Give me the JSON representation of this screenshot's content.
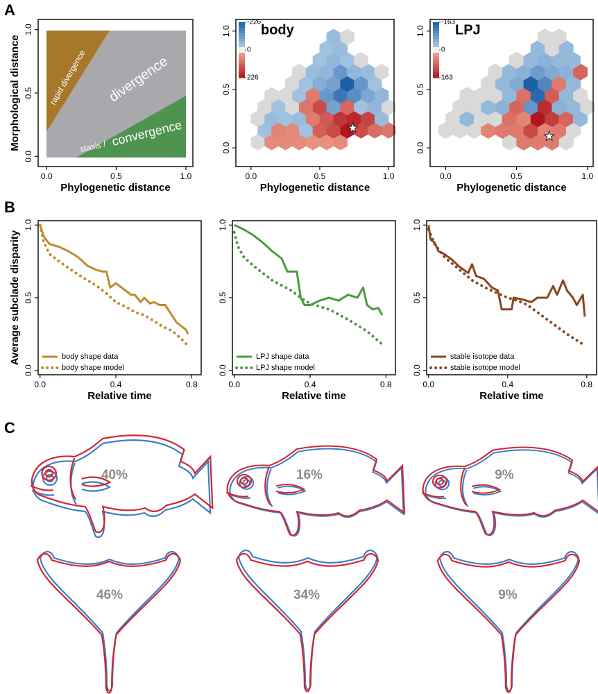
{
  "panel_labels": [
    "A",
    "B",
    "C"
  ],
  "chart_data": [
    {
      "type": "regions",
      "x_label": "Phylogenetic distance",
      "y_label": "Morphological distance",
      "xlim": [
        -0.06,
        1.05
      ],
      "ylim": [
        -0.08,
        1.08
      ],
      "xticks": [
        {
          "value": 0,
          "label": "0.0"
        },
        0.5,
        {
          "value": 1,
          "label": "1.0"
        }
      ],
      "yticks": [
        {
          "value": 0,
          "label": "0.0"
        },
        0.5,
        {
          "value": 1,
          "label": "1.0"
        }
      ],
      "annotations": [
        "rapid divergence",
        "divergence",
        "stasis /",
        "convergence"
      ]
    },
    {
      "type": "hexbin",
      "title": "body",
      "x_label": "Phylogenetic distance",
      "xlim": [
        -0.11,
        1.04
      ],
      "ylim": [
        -0.16,
        1.1
      ],
      "xticks": [
        {
          "value": 0,
          "label": "0.0"
        },
        0.5,
        {
          "value": 1,
          "label": "1.0"
        }
      ],
      "yticks": [
        {
          "value": 0,
          "label": "0.0"
        },
        0.5,
        {
          "value": 1,
          "label": "1.0"
        }
      ],
      "clim": [
        -226,
        226
      ],
      "cticks": [
        -226,
        0,
        226
      ],
      "cells": {
        "x": [
          0.05,
          0.15,
          0.25,
          0.35,
          0.45,
          0.55,
          0.65,
          0.1,
          0.2,
          0.3,
          0.4,
          0.5,
          0.6,
          0.7,
          0.8,
          0.9,
          1.0,
          0.05,
          0.15,
          0.25,
          0.35,
          0.45,
          0.55,
          0.65,
          0.75,
          0.85,
          0.95,
          0.1,
          0.2,
          0.3,
          0.4,
          0.5,
          0.6,
          0.7,
          0.8,
          0.9,
          1.0,
          0.15,
          0.25,
          0.35,
          0.45,
          0.55,
          0.65,
          0.75,
          0.85,
          0.95,
          0.3,
          0.4,
          0.5,
          0.6,
          0.7,
          0.8,
          0.9,
          0.35,
          0.45,
          0.55,
          0.65,
          0.75,
          0.85,
          0.95,
          0.5,
          0.6,
          0.7,
          0.8,
          0.55,
          0.65,
          0.6,
          0.7
        ],
        "y": [
          0.05,
          0.05,
          0.05,
          0.05,
          0.05,
          0.05,
          0.05,
          0.15,
          0.15,
          0.15,
          0.15,
          0.15,
          0.15,
          0.15,
          0.15,
          0.15,
          0.15,
          0.25,
          0.25,
          0.25,
          0.25,
          0.25,
          0.25,
          0.25,
          0.25,
          0.25,
          0.25,
          0.35,
          0.35,
          0.35,
          0.35,
          0.35,
          0.35,
          0.35,
          0.35,
          0.35,
          0.35,
          0.45,
          0.45,
          0.45,
          0.45,
          0.45,
          0.45,
          0.45,
          0.45,
          0.45,
          0.55,
          0.55,
          0.55,
          0.55,
          0.55,
          0.55,
          0.55,
          0.65,
          0.65,
          0.65,
          0.65,
          0.65,
          0.65,
          0.65,
          0.75,
          0.75,
          0.75,
          0.75,
          0.85,
          0.85,
          0.95,
          0.95
        ],
        "values": [
          0,
          60,
          60,
          60,
          50,
          50,
          60,
          -40,
          70,
          60,
          -40,
          120,
          150,
          226,
          150,
          100,
          90,
          0,
          -50,
          -40,
          -50,
          80,
          130,
          180,
          200,
          160,
          -50,
          0,
          -40,
          0,
          90,
          150,
          -100,
          110,
          -40,
          -60,
          0,
          0,
          0,
          -40,
          80,
          -120,
          -180,
          -140,
          -90,
          -60,
          0,
          -40,
          -80,
          -100,
          -226,
          -120,
          -40,
          0,
          -50,
          -60,
          -120,
          -60,
          -50,
          0,
          -40,
          -60,
          -40,
          0,
          -40,
          -50,
          -50,
          0
        ]
      },
      "star": {
        "x": 0.74,
        "y": 0.17
      }
    },
    {
      "type": "hexbin",
      "title": "LPJ",
      "x_label": "Phylogenetic distance",
      "xlim": [
        -0.11,
        1.04
      ],
      "ylim": [
        -0.16,
        1.1
      ],
      "xticks": [
        {
          "value": 0,
          "label": "0.0"
        },
        0.5,
        {
          "value": 1,
          "label": "1.0"
        }
      ],
      "yticks": [
        {
          "value": 0,
          "label": "0.0"
        },
        0.5,
        {
          "value": 1,
          "label": "1.0"
        }
      ],
      "clim": [
        -163,
        163
      ],
      "cticks": [
        -163,
        0,
        163
      ],
      "cells": {
        "x": [
          0.45,
          0.55,
          0.65,
          0.75,
          0.85,
          0,
          0.1,
          0.2,
          0.3,
          0.4,
          0.5,
          0.6,
          0.7,
          0.8,
          0.9,
          0.05,
          0.15,
          0.25,
          0.35,
          0.45,
          0.55,
          0.65,
          0.75,
          0.85,
          0.95,
          0.1,
          0.2,
          0.3,
          0.4,
          0.5,
          0.6,
          0.7,
          0.8,
          0.9,
          1.0,
          0.15,
          0.25,
          0.35,
          0.45,
          0.55,
          0.65,
          0.75,
          0.85,
          0.95,
          0.3,
          0.4,
          0.5,
          0.6,
          0.7,
          0.8,
          0.9,
          0.35,
          0.45,
          0.55,
          0.65,
          0.75,
          0.85,
          0.95,
          0.5,
          0.6,
          0.7,
          0.8,
          0.9,
          0.65,
          0.75,
          0.85,
          0.7,
          0.8
        ],
        "y": [
          0.05,
          0.05,
          0.05,
          0.05,
          0.05,
          0.15,
          0.15,
          0.15,
          0.15,
          0.15,
          0.15,
          0.15,
          0.15,
          0.15,
          0.15,
          0.25,
          0.25,
          0.25,
          0.25,
          0.25,
          0.25,
          0.25,
          0.25,
          0.25,
          0.25,
          0.35,
          0.35,
          0.35,
          0.35,
          0.35,
          0.35,
          0.35,
          0.35,
          0.35,
          0.35,
          0.45,
          0.45,
          0.45,
          0.45,
          0.45,
          0.45,
          0.45,
          0.45,
          0.45,
          0.55,
          0.55,
          0.55,
          0.55,
          0.55,
          0.55,
          0.55,
          0.65,
          0.65,
          0.65,
          0.65,
          0.65,
          0.65,
          0.65,
          0.75,
          0.75,
          0.75,
          0.75,
          0.75,
          0.85,
          0.85,
          0.85,
          0.95,
          0.95
        ],
        "values": [
          0,
          60,
          60,
          60,
          0,
          0,
          0,
          0,
          50,
          60,
          60,
          110,
          50,
          60,
          0,
          0,
          -40,
          0,
          0,
          70,
          50,
          163,
          120,
          80,
          -40,
          0,
          0,
          -40,
          -50,
          80,
          -90,
          140,
          -50,
          -40,
          0,
          0,
          0,
          0,
          -40,
          70,
          -150,
          90,
          -40,
          0,
          0,
          -40,
          -60,
          -163,
          -110,
          60,
          -40,
          0,
          -40,
          -50,
          -80,
          -60,
          -50,
          80,
          0,
          -40,
          -50,
          -40,
          -40,
          -40,
          0,
          -40,
          0,
          0
        ]
      },
      "star": {
        "x": 0.73,
        "y": 0.1
      }
    },
    {
      "type": "line",
      "x_label": "Relative time",
      "y_label": "Average subclade disparity",
      "xlim": [
        -0.01,
        0.85
      ],
      "ylim": [
        -0.03,
        1.03
      ],
      "xticks": [
        {
          "value": 0,
          "label": "0.0"
        },
        0.4,
        0.8
      ],
      "yticks": [
        {
          "value": 0,
          "label": "0.0"
        },
        0.5,
        {
          "value": 1,
          "label": "1.0"
        }
      ],
      "legend": "lower left",
      "series": [
        {
          "name": "body shape data",
          "color": "#c08a2b",
          "style": "solid",
          "x": [
            0,
            0.02,
            0.05,
            0.1,
            0.15,
            0.2,
            0.25,
            0.3,
            0.33,
            0.35,
            0.37,
            0.4,
            0.42,
            0.45,
            0.48,
            0.5,
            0.53,
            0.55,
            0.58,
            0.6,
            0.63,
            0.66,
            0.7,
            0.72,
            0.75,
            0.77,
            0.78
          ],
          "values": [
            1.0,
            0.92,
            0.87,
            0.85,
            0.82,
            0.78,
            0.72,
            0.69,
            0.68,
            0.68,
            0.57,
            0.6,
            0.58,
            0.55,
            0.52,
            0.52,
            0.47,
            0.5,
            0.46,
            0.47,
            0.45,
            0.45,
            0.37,
            0.33,
            0.3,
            0.28,
            0.25
          ]
        },
        {
          "name": "body shape model",
          "color": "#c08a2b",
          "style": "dotted",
          "x": [
            0,
            0.02,
            0.05,
            0.1,
            0.2,
            0.3,
            0.35,
            0.4,
            0.45,
            0.5,
            0.55,
            0.6,
            0.65,
            0.7,
            0.75,
            0.78
          ],
          "values": [
            1.0,
            0.88,
            0.8,
            0.75,
            0.66,
            0.58,
            0.53,
            0.47,
            0.44,
            0.4,
            0.38,
            0.34,
            0.3,
            0.27,
            0.21,
            0.17
          ]
        }
      ]
    },
    {
      "type": "line",
      "x_label": "Relative time",
      "xlim": [
        -0.01,
        0.85
      ],
      "ylim": [
        -0.03,
        1.03
      ],
      "xticks": [
        {
          "value": 0,
          "label": "0.0"
        },
        0.4,
        0.8
      ],
      "yticks": [
        {
          "value": 0,
          "label": "0.0"
        },
        0.5,
        {
          "value": 1,
          "label": "1.0"
        }
      ],
      "legend": "lower left",
      "series": [
        {
          "name": "LPJ shape data",
          "color": "#4a9a3f",
          "style": "solid",
          "x": [
            0,
            0.05,
            0.1,
            0.15,
            0.2,
            0.25,
            0.28,
            0.33,
            0.35,
            0.37,
            0.4,
            0.45,
            0.5,
            0.55,
            0.6,
            0.65,
            0.68,
            0.7,
            0.73,
            0.76,
            0.78
          ],
          "values": [
            1.0,
            0.97,
            0.93,
            0.88,
            0.82,
            0.77,
            0.68,
            0.68,
            0.5,
            0.45,
            0.45,
            0.48,
            0.5,
            0.48,
            0.52,
            0.5,
            0.57,
            0.45,
            0.42,
            0.43,
            0.38
          ]
        },
        {
          "name": "LPJ shape model",
          "color": "#4a9a3f",
          "style": "dotted",
          "x": [
            0,
            0.02,
            0.05,
            0.1,
            0.2,
            0.3,
            0.35,
            0.4,
            0.5,
            0.6,
            0.7,
            0.78
          ],
          "values": [
            0.95,
            0.85,
            0.78,
            0.72,
            0.62,
            0.55,
            0.5,
            0.46,
            0.42,
            0.35,
            0.27,
            0.18
          ]
        }
      ]
    },
    {
      "type": "line",
      "x_label": "Relative time",
      "xlim": [
        -0.01,
        0.85
      ],
      "ylim": [
        -0.03,
        1.03
      ],
      "xticks": [
        {
          "value": 0,
          "label": "0.0"
        },
        0.4,
        0.8
      ],
      "yticks": [
        {
          "value": 0,
          "label": "0.0"
        },
        0.5,
        {
          "value": 1,
          "label": "1.0"
        }
      ],
      "legend": "lower left",
      "series": [
        {
          "name": "stable isotope data",
          "color": "#8a4520",
          "style": "solid",
          "x": [
            0,
            0.01,
            0.03,
            0.05,
            0.08,
            0.12,
            0.15,
            0.2,
            0.22,
            0.24,
            0.28,
            0.3,
            0.32,
            0.35,
            0.37,
            0.42,
            0.43,
            0.47,
            0.52,
            0.55,
            0.6,
            0.63,
            0.65,
            0.68,
            0.7,
            0.73,
            0.75,
            0.78,
            0.79
          ],
          "values": [
            1.0,
            0.9,
            0.88,
            0.82,
            0.8,
            0.76,
            0.72,
            0.67,
            0.73,
            0.65,
            0.63,
            0.6,
            0.57,
            0.55,
            0.42,
            0.42,
            0.5,
            0.49,
            0.47,
            0.5,
            0.5,
            0.58,
            0.52,
            0.62,
            0.55,
            0.5,
            0.45,
            0.52,
            0.37
          ]
        },
        {
          "name": "stable isotope model",
          "color": "#8a4520",
          "style": "dotted",
          "x": [
            0,
            0.03,
            0.08,
            0.15,
            0.22,
            0.3,
            0.4,
            0.45,
            0.5,
            0.6,
            0.7,
            0.78
          ],
          "values": [
            0.97,
            0.87,
            0.78,
            0.7,
            0.62,
            0.56,
            0.5,
            0.48,
            0.45,
            0.35,
            0.25,
            0.18
          ]
        }
      ]
    }
  ],
  "panel_c": {
    "body_percent": [
      "40%",
      "16%",
      "9%"
    ],
    "lpj_percent": [
      "46%",
      "34%",
      "9%"
    ]
  }
}
